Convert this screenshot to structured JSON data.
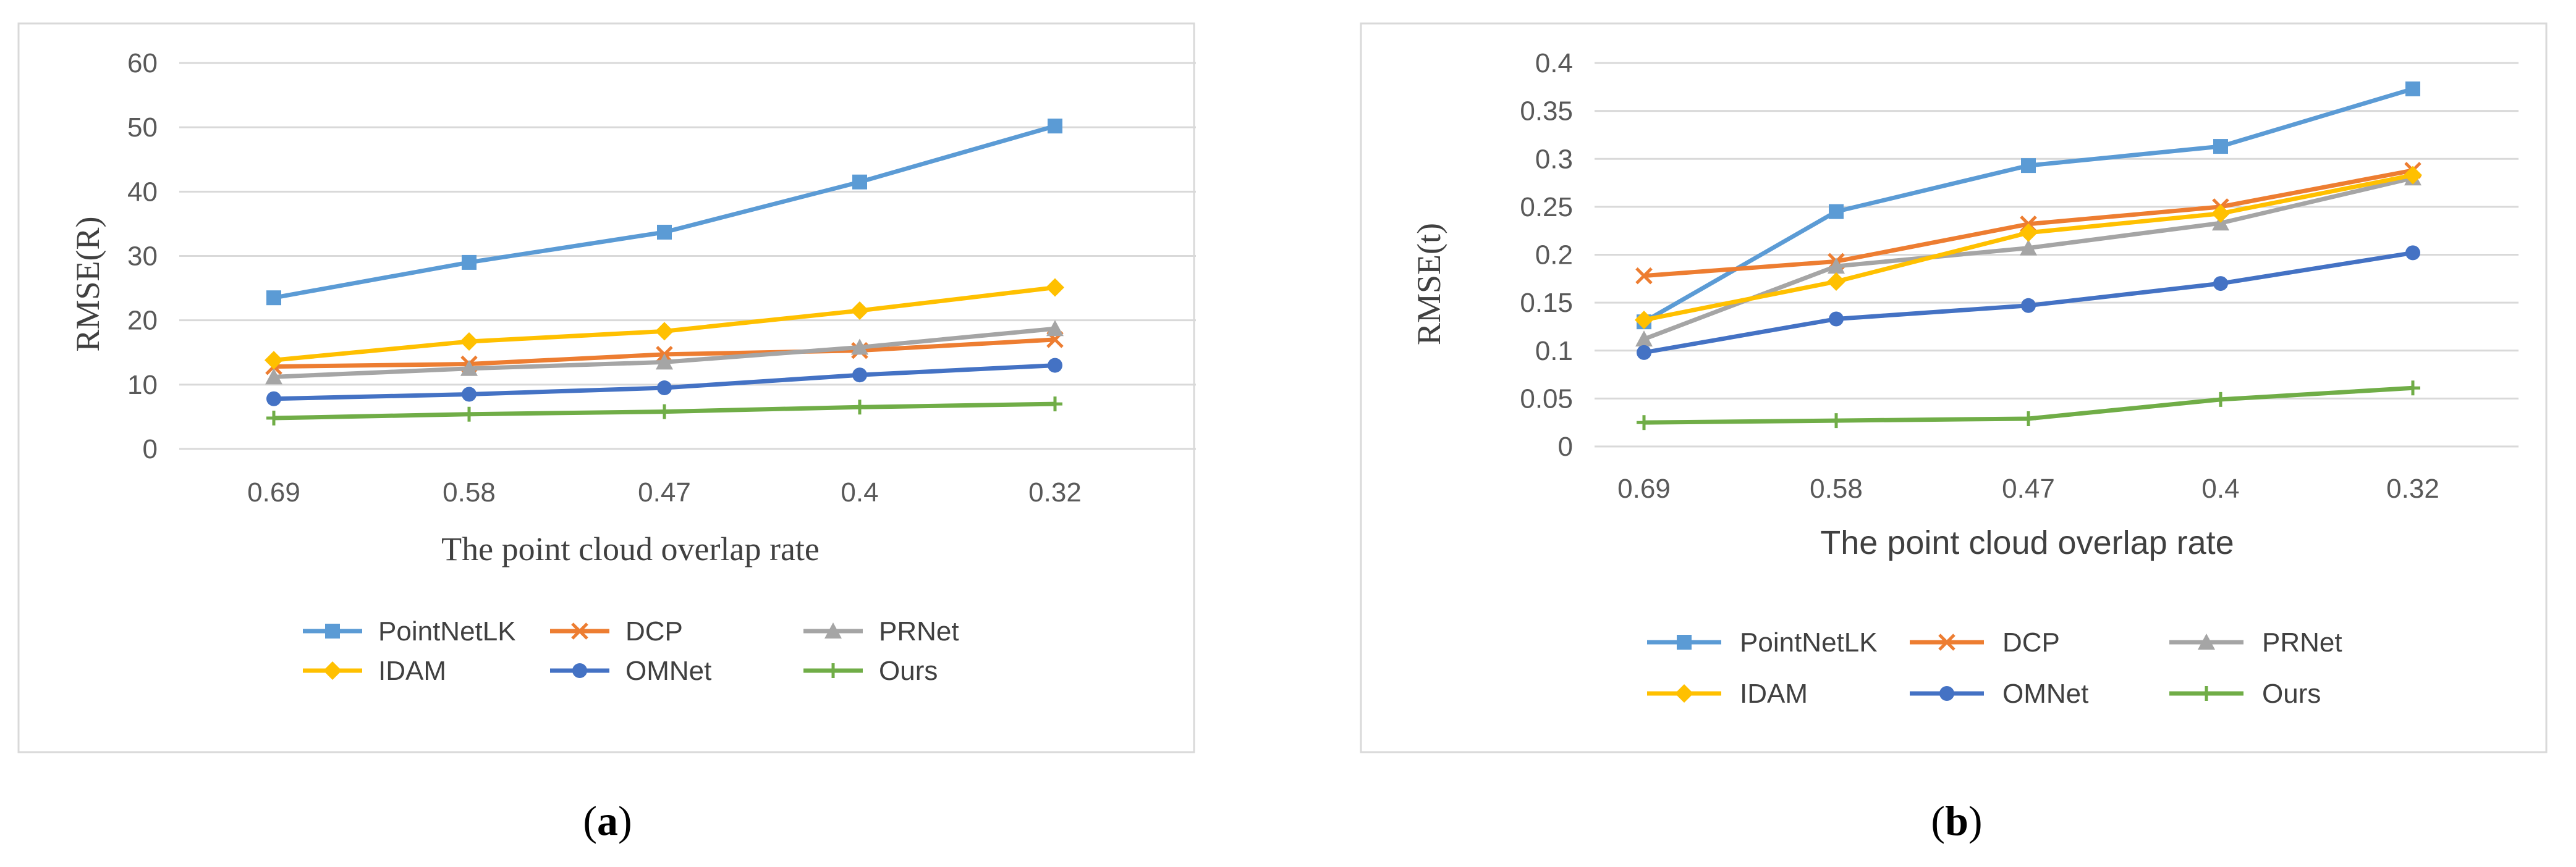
{
  "chart_data": [
    {
      "type": "line",
      "caption": "a",
      "title": "",
      "xlabel": "The point cloud overlap rate",
      "ylabel": "RMSE(R)",
      "categories": [
        "0.69",
        "0.58",
        "0.47",
        "0.4",
        "0.32"
      ],
      "ylim": [
        0,
        60
      ],
      "yticks": [
        "0",
        "10",
        "20",
        "30",
        "40",
        "50",
        "60"
      ],
      "grid": true,
      "legend_position": "bottom",
      "series": [
        {
          "name": "PointNetLK",
          "color": "#5B9BD5",
          "marker": "square",
          "values": [
            23.5,
            29,
            33.7,
            41.5,
            50.2
          ]
        },
        {
          "name": "DCP",
          "color": "#ED7D31",
          "marker": "x",
          "values": [
            12.8,
            13.2,
            14.7,
            15.3,
            17
          ]
        },
        {
          "name": "PRNet",
          "color": "#A5A5A5",
          "marker": "triangle",
          "values": [
            11.2,
            12.5,
            13.5,
            15.8,
            18.7
          ]
        },
        {
          "name": "IDAM",
          "color": "#FFC000",
          "marker": "diamond",
          "values": [
            13.8,
            16.7,
            18.3,
            21.5,
            25.1
          ]
        },
        {
          "name": "OMNet",
          "color": "#4472C4",
          "marker": "circle",
          "values": [
            7.8,
            8.5,
            9.5,
            11.5,
            13
          ]
        },
        {
          "name": "Ours",
          "color": "#70AD47",
          "marker": "plus",
          "values": [
            4.8,
            5.4,
            5.8,
            6.5,
            7
          ]
        }
      ]
    },
    {
      "type": "line",
      "caption": "b",
      "title": "",
      "xlabel": "The point cloud overlap rate",
      "ylabel": "RMSE(t)",
      "categories": [
        "0.69",
        "0.58",
        "0.47",
        "0.4",
        "0.32"
      ],
      "ylim": [
        0,
        0.4
      ],
      "yticks": [
        "0",
        "0.05",
        "0.1",
        "0.15",
        "0.2",
        "0.25",
        "0.3",
        "0.35",
        "0.4"
      ],
      "grid": true,
      "legend_position": "bottom",
      "series": [
        {
          "name": "PointNetLK",
          "color": "#5B9BD5",
          "marker": "square",
          "values": [
            0.13,
            0.245,
            0.293,
            0.313,
            0.373
          ]
        },
        {
          "name": "DCP",
          "color": "#ED7D31",
          "marker": "x",
          "values": [
            0.178,
            0.193,
            0.232,
            0.25,
            0.288
          ]
        },
        {
          "name": "PRNet",
          "color": "#A5A5A5",
          "marker": "triangle",
          "values": [
            0.112,
            0.188,
            0.207,
            0.233,
            0.28
          ]
        },
        {
          "name": "IDAM",
          "color": "#FFC000",
          "marker": "diamond",
          "values": [
            0.132,
            0.172,
            0.223,
            0.243,
            0.283
          ]
        },
        {
          "name": "OMNet",
          "color": "#4472C4",
          "marker": "circle",
          "values": [
            0.098,
            0.133,
            0.147,
            0.17,
            0.202
          ]
        },
        {
          "name": "Ours",
          "color": "#70AD47",
          "marker": "plus",
          "values": [
            0.025,
            0.027,
            0.029,
            0.049,
            0.061
          ]
        }
      ]
    }
  ]
}
